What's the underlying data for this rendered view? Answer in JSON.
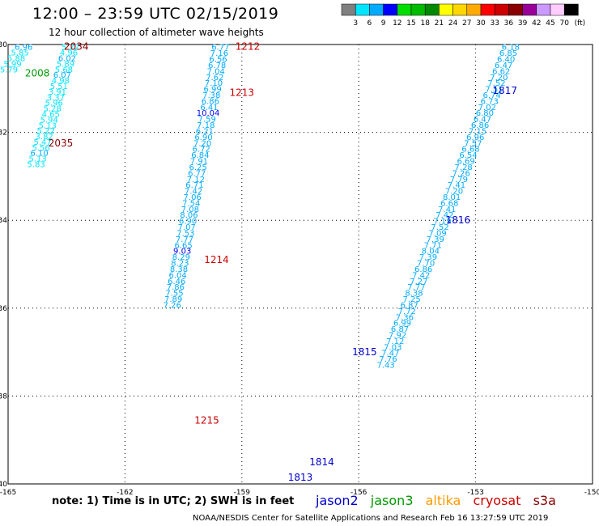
{
  "title": "12:00 – 23:59 UTC 02/15/2019",
  "subtitle": "12 hour collection of altimeter wave heights",
  "note": "note:  1) Time is in UTC;  2) SWH is in feet",
  "credit": "NOAA/NESDIS Center for Satellite Applications and Research     Feb 16 13:27:59 UTC 2019",
  "satellites": [
    {
      "name": "jason2",
      "color": "#0000cc"
    },
    {
      "name": "jason3",
      "color": "#009900"
    },
    {
      "name": "altika",
      "color": "#ff9900"
    },
    {
      "name": "cryosat",
      "color": "#cc0000"
    },
    {
      "name": "s3a",
      "color": "#880000"
    }
  ],
  "color_scale": {
    "labels": [
      "3",
      "6",
      "9",
      "12",
      "15",
      "18",
      "21",
      "24",
      "27",
      "30",
      "33",
      "36",
      "39",
      "42",
      "45",
      "70"
    ],
    "unit": "(ft)",
    "colors": [
      "#808080",
      "#00e5ff",
      "#00aaff",
      "#0000ff",
      "#00dd00",
      "#00bb00",
      "#008800",
      "#ffff00",
      "#ffd700",
      "#ffaa00",
      "#ff0000",
      "#cc0000",
      "#880000",
      "#990099",
      "#cc99ff",
      "#ffccff",
      "#000000"
    ]
  },
  "chart_data": {
    "type": "scatter",
    "xlim": [
      -165,
      -150
    ],
    "ylim": [
      -40,
      -30
    ],
    "x_ticks": [
      "-165",
      "-162",
      "-159",
      "-156",
      "-153",
      "-150"
    ],
    "y_ticks": [
      "-30",
      "-32",
      "-34",
      "-36",
      "-38",
      "-40"
    ],
    "grid": true,
    "tracks": [
      {
        "x0": -164.6,
        "y0": -30.05,
        "dx": -0.095,
        "dy": 0.127,
        "values": [
          "6.96",
          "5.85",
          "5.88",
          "5.99",
          "5.79"
        ]
      },
      {
        "x0": -163.4,
        "y0": -30.05,
        "dx": -0.042,
        "dy": 0.127,
        "values": [
          "5.22",
          "4.96",
          "6.02",
          "5.89",
          "5.68",
          "6.07",
          "4.98",
          "5.51",
          "3.91",
          "3.37",
          "5.96",
          "5.28",
          "4.65",
          "5.94",
          "5.13",
          "5.22",
          "3.82",
          "5.47",
          "5.56",
          "6.10",
          "5.13",
          "5.83"
        ]
      },
      {
        "x0": -159.55,
        "y0": -30.05,
        "dx": -0.0288,
        "dy": 0.1365,
        "values": [
          "6.77",
          "7.16",
          "6.56",
          "6.78",
          "7.04",
          "7.62",
          "7.10",
          "6.99",
          "7.38",
          "6.86",
          "6.41",
          "10.04",
          "7.59",
          "7.18",
          "6.21",
          "6.90",
          "7.20",
          "6.72",
          "6.84",
          "7.91",
          "6.25",
          "6.77",
          "7.12",
          "6.71",
          "7.42",
          "7.06",
          "7.54",
          "7.08",
          "8.06",
          "6.90",
          "7.07",
          "7.53",
          "7.77",
          "6.65",
          "9.03",
          "8.29",
          "8.23",
          "8.38",
          "6.04",
          "6.46",
          "7.86",
          "7.55",
          "7.89",
          "7.26"
        ]
      },
      {
        "x0": -152.1,
        "y0": -30.05,
        "dx": -0.0605,
        "dy": 0.1365,
        "values": [
          "6.18",
          "6.85",
          "6.40",
          "6.47",
          "6.62",
          "7.20",
          "7.52",
          "7.51",
          "6.74",
          "6.73",
          "7.02",
          "6.80",
          "6.47",
          "6.86",
          "7.15",
          "6.96",
          "7.57",
          "6.68",
          "6.54",
          "6.69",
          "7.28",
          "7.26",
          "7.79",
          "7.41",
          "7.20",
          "8.01",
          "6.68",
          "7.41",
          "7.42",
          "7.19",
          "7.52",
          "7.09",
          "7.39",
          "7.71",
          "8.04",
          "7.39",
          "7.70",
          "6.86",
          "7.42",
          "7.27",
          "7.77",
          "8.38",
          "7.25",
          "6.87",
          "7.72",
          "7.36",
          "6.99",
          "6.87",
          "7.92",
          "7.12",
          "7.03",
          "7.47",
          "7.76",
          "7.43"
        ]
      }
    ],
    "time_labels": [
      {
        "text": "2034",
        "sat": "s3a",
        "lon": -163.25,
        "lat": -30.05
      },
      {
        "text": "2008",
        "sat": "jason3",
        "lon": -164.25,
        "lat": -30.65
      },
      {
        "text": "2035",
        "sat": "s3a",
        "lon": -163.65,
        "lat": -32.25
      },
      {
        "text": "1212",
        "sat": "cryosat",
        "lon": -158.85,
        "lat": -30.05
      },
      {
        "text": "1213",
        "sat": "cryosat",
        "lon": -159.0,
        "lat": -31.1
      },
      {
        "text": "1214",
        "sat": "cryosat",
        "lon": -159.65,
        "lat": -34.9
      },
      {
        "text": "1215",
        "sat": "cryosat",
        "lon": -159.9,
        "lat": -38.55
      },
      {
        "text": "1817",
        "sat": "jason2",
        "lon": -152.25,
        "lat": -31.05
      },
      {
        "text": "1816",
        "sat": "jason2",
        "lon": -153.45,
        "lat": -34.0
      },
      {
        "text": "1815",
        "sat": "jason2",
        "lon": -155.85,
        "lat": -37.0
      },
      {
        "text": "1814",
        "sat": "jason2",
        "lon": -156.95,
        "lat": -39.5
      },
      {
        "text": "1813",
        "sat": "jason2",
        "lon": -157.5,
        "lat": -39.85
      }
    ]
  }
}
